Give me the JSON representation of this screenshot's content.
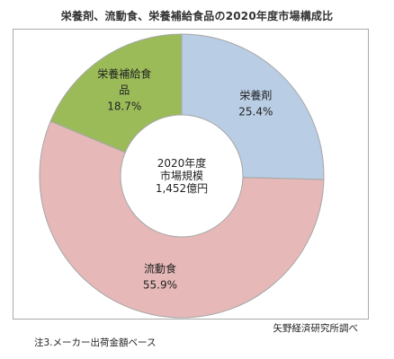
{
  "chart_data": {
    "type": "pie",
    "title": "栄養剤、流動食、栄養補給食品の2020年度市場構成比",
    "center_label": [
      "2020年度",
      "市場規模",
      "1,452億円"
    ],
    "series": [
      {
        "values": [
          25.4,
          55.9,
          18.7
        ]
      }
    ],
    "categories": [
      "栄養剤",
      "流動食",
      "栄養補給食品"
    ],
    "labels": [
      {
        "lines": [
          "栄養剤",
          "25.4%"
        ]
      },
      {
        "lines": [
          "流動食",
          "55.9%"
        ]
      },
      {
        "lines": [
          "栄養補給食",
          "品",
          "18.7%"
        ]
      }
    ],
    "colors": [
      "#b9cde4",
      "#e6b9b8",
      "#9bbb59"
    ],
    "edge_color": "#a6a6a6",
    "donut": true
  },
  "footer": {
    "source": "矢野経済研究所調べ",
    "note": "注3.メーカー出荷金額ベース"
  }
}
